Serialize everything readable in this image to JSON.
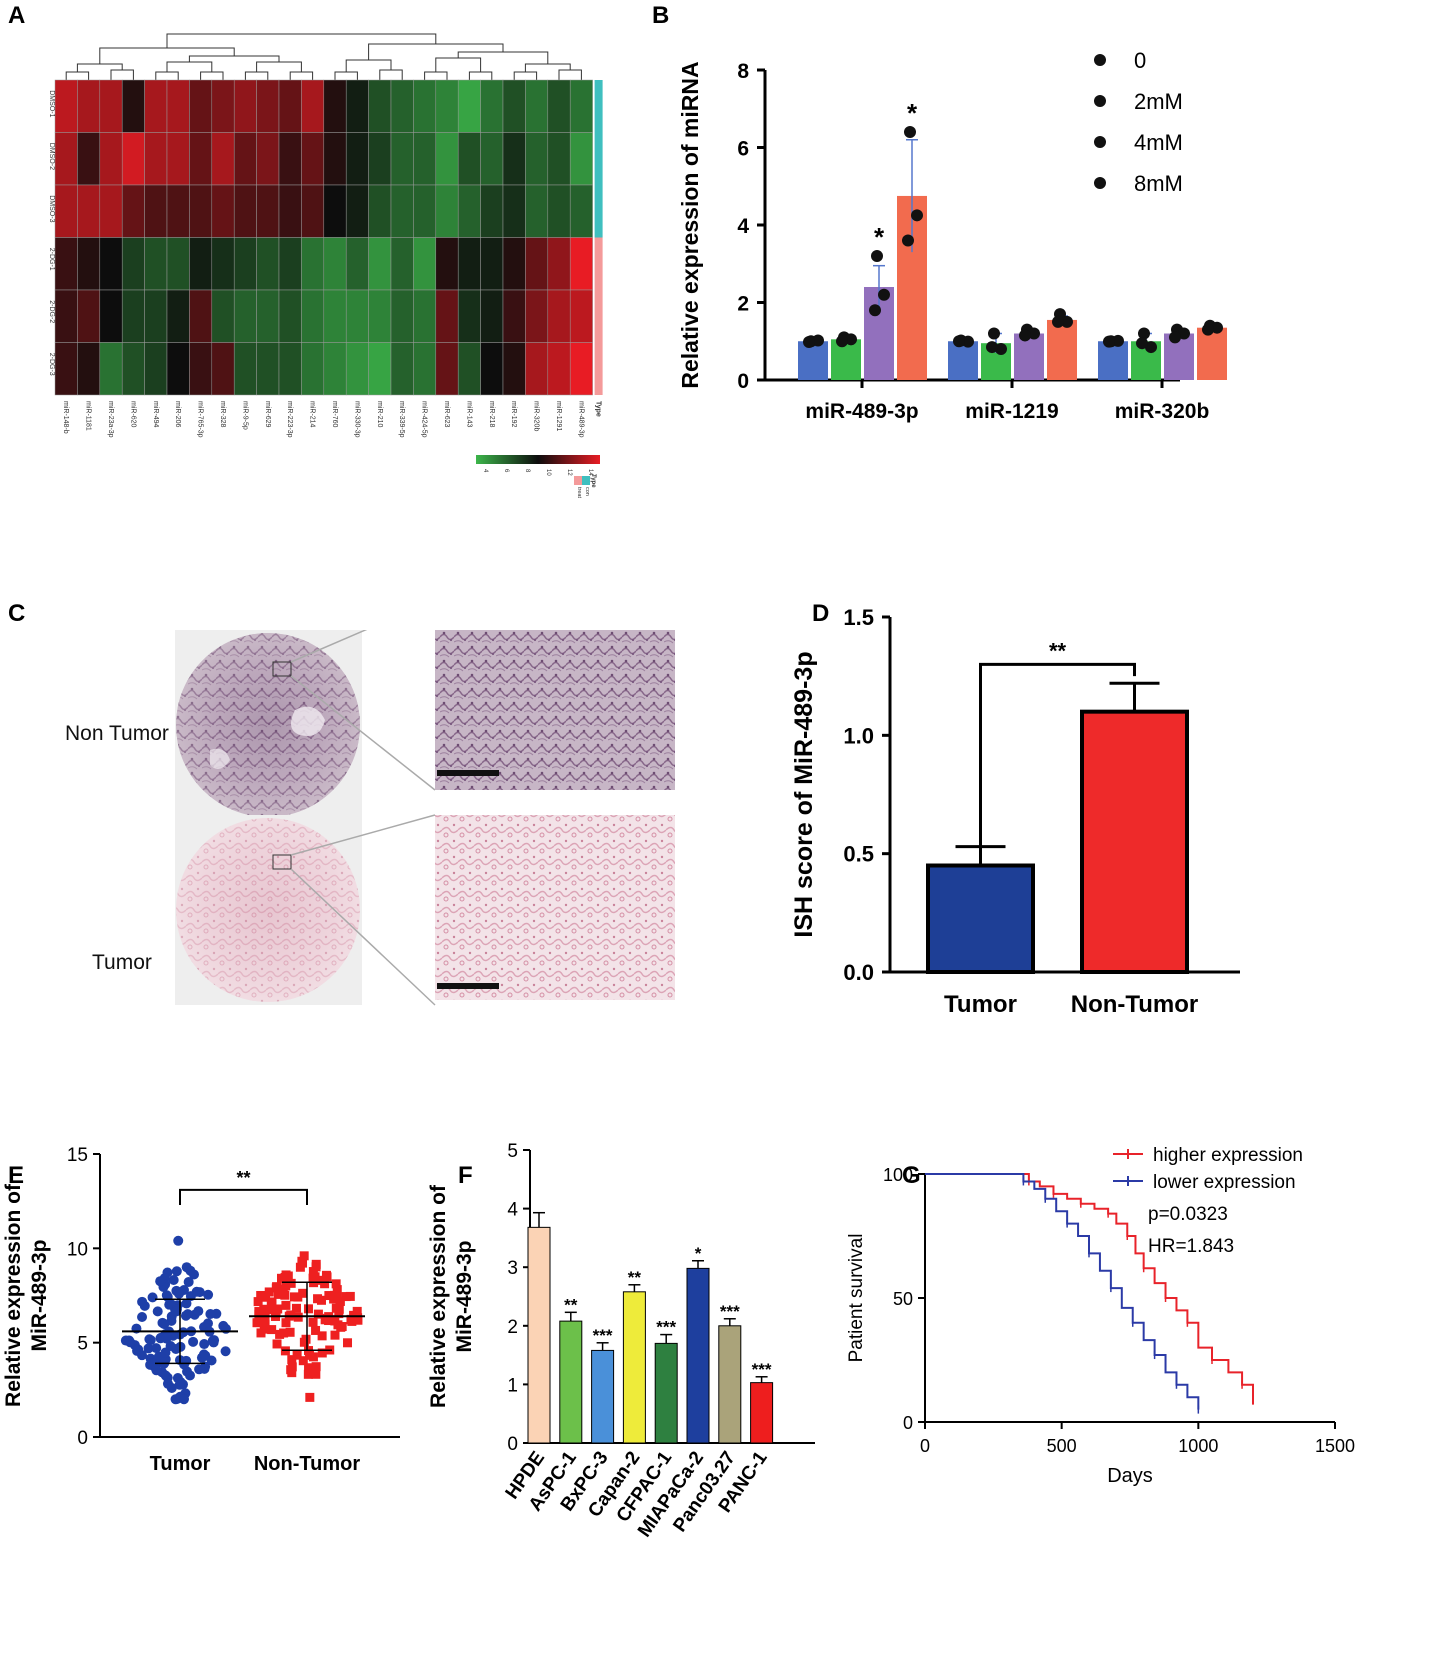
{
  "panels": {
    "A": "A",
    "B": "B",
    "C": "C",
    "D": "D",
    "E": "E",
    "F": "F",
    "G": "G"
  },
  "chart_data": [
    {
      "id": "A",
      "type": "heatmap",
      "rows": [
        "DMSO-1",
        "DMSO-2",
        "DMSO-3",
        "2-DG-1",
        "2-DG-2",
        "2-DG-3"
      ],
      "columns": [
        "miR-148-b",
        "miR-1181",
        "miR-23a-3p",
        "miR-620",
        "miR-494",
        "miR-206",
        "miR-765-3p",
        "miR-328",
        "miR-9-5p",
        "miR-629",
        "miR-223-3p",
        "miR-214",
        "miR-760",
        "miR-330-3p",
        "miR-210",
        "miR-339-5p",
        "miR-424-5p",
        "miR-623",
        "miR-143",
        "miR-218",
        "miR-192",
        "miR-320b",
        "miR-1291",
        "miR-489-3p"
      ],
      "values": [
        [
          13,
          12.5,
          12.5,
          9.5,
          12.5,
          12.5,
          11,
          11.5,
          12,
          11.5,
          11,
          12.5,
          9.5,
          8.5,
          7,
          6.5,
          6,
          5.5,
          4.5,
          6,
          7,
          6,
          7,
          6
        ],
        [
          12.5,
          10,
          12.5,
          13.5,
          12.5,
          12.5,
          11,
          12.5,
          11,
          11.5,
          10,
          11,
          9.5,
          8.5,
          7.5,
          6.5,
          6.5,
          5,
          7,
          6.5,
          8,
          6.5,
          7,
          5
        ],
        [
          12.5,
          12.5,
          12.5,
          11,
          10.5,
          10.5,
          10.5,
          11,
          10.5,
          10.5,
          10,
          10.5,
          9,
          8.5,
          7,
          6.5,
          6.5,
          5.5,
          6.5,
          7.5,
          8,
          6.5,
          7,
          6.5
        ],
        [
          10,
          9.5,
          9,
          7.5,
          7,
          7,
          8.5,
          8,
          7.5,
          7,
          7.5,
          6,
          5.5,
          6.5,
          5,
          6.5,
          5,
          9.5,
          8.5,
          8.5,
          9.5,
          11,
          12,
          14
        ],
        [
          10,
          10.5,
          9,
          7.5,
          7.5,
          8.5,
          10.5,
          7,
          6.5,
          6.5,
          7,
          6,
          5.5,
          5.5,
          5.5,
          6.5,
          6,
          11,
          8,
          8.5,
          10,
          11.5,
          12.5,
          13
        ],
        [
          10,
          9.5,
          6,
          7,
          7.5,
          9,
          10,
          10.5,
          7,
          7,
          7,
          6,
          5.5,
          5,
          4.5,
          6.5,
          6,
          11,
          7,
          9,
          9.5,
          12.5,
          13,
          14
        ]
      ],
      "type_labels": [
        "Type",
        "con",
        "treat"
      ],
      "legend_title": "Type",
      "scale_ticks": [
        "4",
        "6",
        "8",
        "10",
        "12",
        "14"
      ],
      "scale_range": [
        4,
        14
      ],
      "colors": {
        "low": "#3cb54a",
        "mid": "#0d0d0d",
        "high": "#e81c24",
        "con": "#3fbfbf",
        "treat": "#f49a9a"
      }
    },
    {
      "id": "B",
      "type": "bar",
      "ylabel": "Relative expression of miRNA",
      "categories": [
        "miR-489-3p",
        "miR-1219",
        "miR-320b"
      ],
      "ylim": [
        0,
        8
      ],
      "yticks": [
        "0",
        "2",
        "4",
        "6",
        "8"
      ],
      "series": [
        {
          "name": "0",
          "color": "#4a6fc4",
          "values": [
            1.0,
            1.0,
            1.0
          ],
          "errors": [
            0.05,
            0.05,
            0.05
          ],
          "points": [
            [
              1.0,
              1.02,
              0.98
            ],
            [
              1.02,
              0.99,
              1.0
            ],
            [
              1.0,
              1.01,
              0.99
            ]
          ]
        },
        {
          "name": "2mM",
          "color": "#3aba4a",
          "values": [
            1.05,
            0.95,
            1.0
          ],
          "errors": [
            0.08,
            0.25,
            0.2
          ],
          "points": [
            [
              1.1,
              1.05,
              1.0
            ],
            [
              1.2,
              0.8,
              0.85
            ],
            [
              1.2,
              0.85,
              0.95
            ]
          ]
        },
        {
          "name": "4mM",
          "color": "#9270bd",
          "values": [
            2.4,
            1.2,
            1.2
          ],
          "errors": [
            0.55,
            0.08,
            0.1
          ],
          "points": [
            [
              3.2,
              2.2,
              1.8
            ],
            [
              1.3,
              1.2,
              1.15
            ],
            [
              1.3,
              1.2,
              1.1
            ]
          ]
        },
        {
          "name": "8mM",
          "color": "#f26b4e",
          "values": [
            4.75,
            1.55,
            1.35
          ],
          "errors": [
            1.45,
            0.1,
            0.08
          ],
          "points": [
            [
              6.4,
              4.25,
              3.6
            ],
            [
              1.7,
              1.5,
              1.5
            ],
            [
              1.4,
              1.35,
              1.3
            ]
          ]
        }
      ],
      "significance": [
        {
          "category": "miR-489-3p",
          "series": "4mM",
          "label": "*"
        },
        {
          "category": "miR-489-3p",
          "series": "8mM",
          "label": "*"
        }
      ],
      "legend": "top-right",
      "error_color": "#5577cc"
    },
    {
      "id": "C",
      "type": "image",
      "labels": [
        "Non Tumor",
        "Tumor"
      ]
    },
    {
      "id": "D",
      "type": "bar",
      "ylabel": "ISH score of MiR-489-3p",
      "categories": [
        "Tumor",
        "Non-Tumor"
      ],
      "values": [
        0.45,
        1.1
      ],
      "errors": [
        0.08,
        0.12
      ],
      "colors": [
        "#1e3f96",
        "#ee2a2a"
      ],
      "ylim": [
        0,
        1.5
      ],
      "yticks": [
        "0.0",
        "0.5",
        "1.0",
        "1.5"
      ],
      "significance": "**"
    },
    {
      "id": "E",
      "type": "scatter",
      "ylabel": "Relative expression of MiR-489-3p",
      "categories": [
        "Tumor",
        "Non-Tumor"
      ],
      "means": [
        5.6,
        6.4
      ],
      "sd": [
        1.7,
        1.8
      ],
      "ranges": [
        [
          2.0,
          10.4
        ],
        [
          2.1,
          11.3
        ]
      ],
      "n_per_group": 120,
      "colors": [
        "#1e3fa8",
        "#ee2020"
      ],
      "ylim": [
        0,
        15
      ],
      "yticks": [
        "0",
        "5",
        "10",
        "15"
      ],
      "significance": "**"
    },
    {
      "id": "F",
      "type": "bar",
      "ylabel": "Relative expression of MiR-489-3p",
      "categories": [
        "HPDE",
        "AsPC-1",
        "BxPC-3",
        "Capan-2",
        "CFPAC-1",
        "MIAPaCa-2",
        "Panc03.27",
        "PANC-1"
      ],
      "values": [
        3.68,
        2.08,
        1.58,
        2.58,
        1.7,
        2.98,
        2.0,
        1.03
      ],
      "errors": [
        0.25,
        0.15,
        0.13,
        0.12,
        0.15,
        0.13,
        0.12,
        0.1
      ],
      "colors": [
        "#fbd3b5",
        "#6cc04a",
        "#4a90d9",
        "#eeeb3a",
        "#2e8040",
        "#1e3f9e",
        "#aaa37a",
        "#ee1e1e"
      ],
      "stars": [
        "",
        "**",
        "***",
        "**",
        "***",
        "*",
        "***",
        "***"
      ],
      "ylim": [
        0,
        5
      ],
      "yticks": [
        "0",
        "1",
        "2",
        "3",
        "4",
        "5"
      ]
    },
    {
      "id": "G",
      "type": "line",
      "xlabel": "Days",
      "ylabel": "Patient survival",
      "xlim": [
        0,
        1500
      ],
      "ylim": [
        0,
        100
      ],
      "xticks": [
        "0",
        "500",
        "1000",
        "1500"
      ],
      "yticks": [
        "0",
        "50",
        "100"
      ],
      "series": [
        {
          "name": "higher expression",
          "color": "#e8232a",
          "x": [
            0,
            350,
            380,
            420,
            470,
            520,
            570,
            620,
            670,
            700,
            740,
            770,
            800,
            840,
            880,
            920,
            960,
            1000,
            1050,
            1110,
            1160,
            1200
          ],
          "y": [
            100,
            100,
            97,
            95,
            92,
            90,
            88,
            86,
            84,
            80,
            75,
            68,
            62,
            56,
            50,
            45,
            40,
            30,
            25,
            20,
            15,
            7
          ]
        },
        {
          "name": "lower expression",
          "color": "#2b3aa6",
          "x": [
            0,
            340,
            360,
            400,
            440,
            480,
            520,
            560,
            600,
            640,
            680,
            720,
            760,
            800,
            840,
            880,
            920,
            960,
            1000
          ],
          "y": [
            100,
            100,
            97,
            94,
            90,
            85,
            80,
            75,
            68,
            61,
            54,
            46,
            40,
            33,
            27,
            20,
            15,
            10,
            5
          ]
        }
      ],
      "annotations": [
        "p=0.0323",
        "HR=1.843"
      ],
      "legend": "top-right"
    }
  ]
}
